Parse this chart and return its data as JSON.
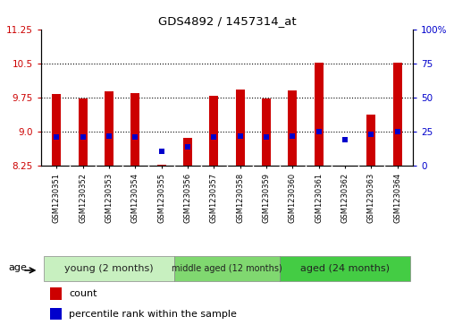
{
  "title": "GDS4892 / 1457314_at",
  "samples": [
    "GSM1230351",
    "GSM1230352",
    "GSM1230353",
    "GSM1230354",
    "GSM1230355",
    "GSM1230356",
    "GSM1230357",
    "GSM1230358",
    "GSM1230359",
    "GSM1230360",
    "GSM1230361",
    "GSM1230362",
    "GSM1230363",
    "GSM1230364"
  ],
  "count_values": [
    9.82,
    9.72,
    9.88,
    9.84,
    8.28,
    8.87,
    9.78,
    9.93,
    9.72,
    9.9,
    10.52,
    8.25,
    9.37,
    10.52
  ],
  "percentile_values": [
    8.875,
    8.875,
    8.895,
    8.875,
    8.575,
    8.675,
    8.875,
    8.895,
    8.875,
    8.905,
    8.995,
    8.82,
    8.945,
    8.995
  ],
  "y_min": 8.25,
  "y_max": 11.25,
  "y_ticks_left": [
    8.25,
    9.0,
    9.75,
    10.5,
    11.25
  ],
  "y_ticks_right_vals": [
    "0",
    "25",
    "50",
    "75",
    "100%"
  ],
  "y_ticks_right_pos": [
    8.25,
    9.0,
    9.75,
    10.5,
    11.25
  ],
  "grid_lines": [
    9.0,
    9.75,
    10.5
  ],
  "groups": [
    {
      "label": "young (2 months)",
      "start": 0,
      "end": 5,
      "color": "#C8F0C0"
    },
    {
      "label": "middle aged (12 months)",
      "start": 5,
      "end": 9,
      "color": "#80D870"
    },
    {
      "label": "aged (24 months)",
      "start": 9,
      "end": 14,
      "color": "#44CC44"
    }
  ],
  "bar_color": "#CC0000",
  "dot_color": "#0000CC",
  "bar_width": 0.35,
  "dot_size": 20,
  "plot_bg": "#FFFFFF",
  "label_bg": "#D0D0D0",
  "left_tick_color": "#CC0000",
  "right_tick_color": "#0000CC",
  "age_label": "age",
  "legend_count": "count",
  "legend_percentile": "percentile rank within the sample"
}
